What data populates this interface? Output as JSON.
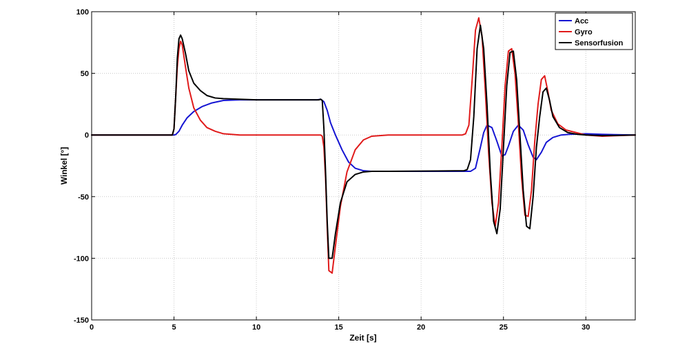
{
  "chart_data": {
    "type": "line",
    "title": "",
    "xlabel": "Zeit [s]",
    "ylabel": "Winkel [°]",
    "xlim": [
      0,
      33
    ],
    "ylim": [
      -150,
      100
    ],
    "xticks": [
      0,
      5,
      10,
      15,
      20,
      25,
      30
    ],
    "yticks": [
      100,
      50,
      0,
      -50,
      -100,
      -150
    ],
    "grid": true,
    "legend_position": "top-right",
    "series": [
      {
        "name": "Acc",
        "color": "#1414d2",
        "x": [
          0,
          4.5,
          5.0,
          5.1,
          5.3,
          5.5,
          5.8,
          6.2,
          6.7,
          7.3,
          8.0,
          9.0,
          10.0,
          12.0,
          13.7,
          13.9,
          14.1,
          14.3,
          14.5,
          14.8,
          15.2,
          15.6,
          16.0,
          16.5,
          17.0,
          18.0,
          20.0,
          22.0,
          23.0,
          23.3,
          23.6,
          23.8,
          24.0,
          24.3,
          24.6,
          24.9,
          25.1,
          25.3,
          25.6,
          25.9,
          26.2,
          26.5,
          26.8,
          27.0,
          27.3,
          27.6,
          28.0,
          28.5,
          29.0,
          30.0,
          31.0,
          33.0
        ],
        "y": [
          0,
          0,
          0,
          0.3,
          3,
          8,
          14,
          19,
          23,
          26,
          28,
          28.5,
          28.5,
          28.5,
          28.5,
          29,
          27,
          20,
          10,
          0,
          -12,
          -22,
          -27,
          -29,
          -29.5,
          -29.5,
          -29.5,
          -29.5,
          -29.5,
          -27,
          -10,
          2,
          8,
          6,
          -5,
          -17,
          -16,
          -9,
          3,
          8,
          4,
          -8,
          -18,
          -20,
          -14,
          -6,
          -2,
          0,
          0.5,
          1,
          0.5,
          0
        ]
      },
      {
        "name": "Gyro",
        "color": "#e01a1a",
        "x": [
          0,
          4.9,
          5.0,
          5.1,
          5.2,
          5.3,
          5.4,
          5.5,
          5.7,
          5.9,
          6.2,
          6.6,
          7.0,
          7.5,
          8.0,
          9.0,
          10.0,
          13.9,
          14.0,
          14.1,
          14.2,
          14.3,
          14.4,
          14.6,
          14.8,
          15.1,
          15.5,
          16.0,
          16.5,
          17.0,
          18.0,
          22.5,
          22.7,
          22.9,
          23.1,
          23.3,
          23.5,
          23.7,
          23.9,
          24.1,
          24.3,
          24.5,
          24.7,
          24.9,
          25.1,
          25.3,
          25.5,
          25.7,
          25.9,
          26.1,
          26.3,
          26.5,
          26.7,
          26.9,
          27.1,
          27.3,
          27.5,
          27.7,
          27.9,
          28.3,
          28.8,
          29.4,
          30.0,
          31.0,
          33.0
        ],
        "y": [
          0,
          0,
          5,
          30,
          55,
          70,
          76,
          73,
          55,
          38,
          22,
          12,
          6,
          3,
          1,
          0,
          0,
          0,
          -1,
          -10,
          -35,
          -75,
          -110,
          -112,
          -90,
          -58,
          -30,
          -12,
          -4,
          -1,
          0,
          0,
          1,
          8,
          45,
          85,
          95,
          80,
          35,
          -15,
          -55,
          -74,
          -55,
          -10,
          40,
          68,
          70,
          50,
          10,
          -35,
          -65,
          -66,
          -45,
          -5,
          25,
          45,
          48,
          35,
          20,
          9,
          4,
          2,
          0,
          -1,
          0
        ]
      },
      {
        "name": "Sensorfusion",
        "color": "#000000",
        "x": [
          0,
          4.9,
          5.0,
          5.1,
          5.2,
          5.3,
          5.4,
          5.5,
          5.7,
          5.9,
          6.2,
          6.6,
          7.0,
          7.5,
          8.0,
          9.0,
          10.0,
          13.8,
          13.9,
          14.0,
          14.1,
          14.2,
          14.3,
          14.4,
          14.6,
          14.8,
          15.1,
          15.5,
          16.0,
          16.5,
          17.0,
          18.0,
          22.6,
          22.8,
          23.0,
          23.2,
          23.4,
          23.6,
          23.8,
          24.0,
          24.2,
          24.4,
          24.6,
          24.8,
          25.0,
          25.2,
          25.4,
          25.6,
          25.8,
          26.0,
          26.2,
          26.4,
          26.6,
          26.8,
          27.0,
          27.2,
          27.4,
          27.6,
          27.8,
          28.0,
          28.4,
          28.9,
          29.5,
          30.0,
          31.0,
          33.0
        ],
        "y": [
          0,
          0,
          5,
          30,
          62,
          78,
          81,
          78,
          66,
          52,
          42,
          36,
          32,
          30,
          29.5,
          29,
          28.5,
          28.5,
          29,
          28,
          5,
          -30,
          -70,
          -100,
          -100,
          -80,
          -55,
          -38,
          -32,
          -30,
          -29.5,
          -29.5,
          -29,
          -28,
          -20,
          15,
          70,
          89,
          70,
          25,
          -30,
          -70,
          -80,
          -60,
          -10,
          40,
          67,
          68,
          45,
          0,
          -45,
          -74,
          -76,
          -50,
          -10,
          15,
          35,
          38,
          28,
          15,
          6,
          2,
          0.5,
          0,
          -0.5,
          0
        ]
      }
    ]
  }
}
